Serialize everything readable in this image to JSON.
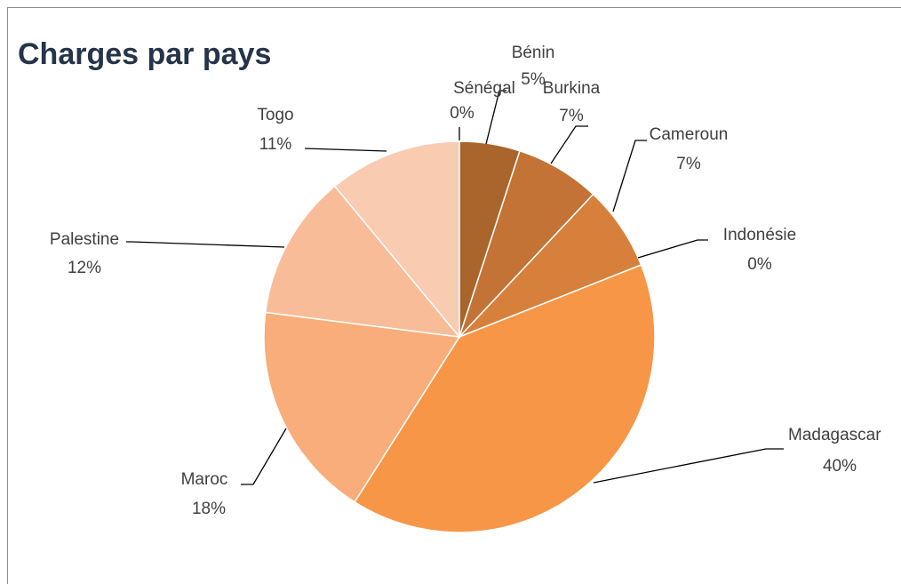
{
  "chart_data": {
    "type": "pie",
    "title": "Charges par pays",
    "categories": [
      "Bénin",
      "Burkina",
      "Cameroun",
      "Indonésie",
      "Madagascar",
      "Maroc",
      "Palestine",
      "Togo",
      "Sénégal"
    ],
    "values": [
      5,
      7,
      7,
      0,
      40,
      18,
      12,
      11,
      0
    ],
    "value_labels": [
      "5%",
      "7%",
      "7%",
      "0%",
      "40%",
      "18%",
      "12%",
      "11%",
      "0%"
    ],
    "colors": [
      "#a9652b",
      "#c27335",
      "#d6803c",
      "#e08a40",
      "#f79646",
      "#f8ad7a",
      "#f9bc98",
      "#f9cbb1",
      "#a05e28"
    ]
  }
}
